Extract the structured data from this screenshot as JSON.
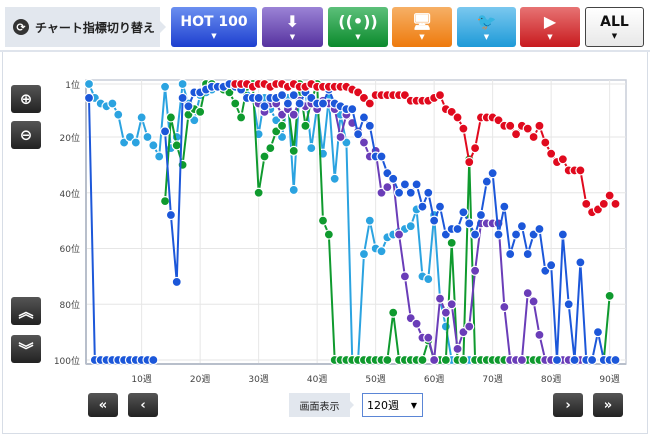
{
  "topbar": {
    "switch_label": "チャート指標切り替え",
    "buttons": [
      {
        "label": "HOT 100",
        "icon": "hot100",
        "color": "#2a52d8"
      },
      {
        "label": "",
        "icon": "download-sales-icon",
        "color": "#6a48b8"
      },
      {
        "label": "",
        "icon": "radio-antenna-icon",
        "color": "#12963a"
      },
      {
        "label": "",
        "icon": "pc-cd-icon",
        "color": "#f08a1c"
      },
      {
        "label": "",
        "icon": "twitter-bird-icon",
        "color": "#2ea6e2"
      },
      {
        "label": "",
        "icon": "youtube-play-icon",
        "color": "#d6252b"
      },
      {
        "label": "ALL",
        "icon": "all",
        "color": "#ffffff"
      }
    ]
  },
  "controls": {
    "display_label": "画面表示",
    "display_value": "120週"
  },
  "chart_data": {
    "type": "line",
    "xlabel": "",
    "ylabel": "",
    "x_tick_labels": [
      "10週",
      "20週",
      "30週",
      "40週",
      "50週",
      "60週",
      "70週",
      "80週",
      "90週"
    ],
    "y_tick_labels": [
      "1位",
      "20位",
      "40位",
      "60位",
      "80位",
      "100位"
    ],
    "xlim": [
      1,
      92
    ],
    "ylim": [
      100,
      1
    ],
    "y_reversed": true,
    "grid": true,
    "x": [
      1,
      2,
      3,
      4,
      5,
      6,
      7,
      8,
      9,
      10,
      11,
      12,
      13,
      14,
      15,
      16,
      17,
      18,
      19,
      20,
      21,
      22,
      23,
      24,
      25,
      26,
      27,
      28,
      29,
      30,
      31,
      32,
      33,
      34,
      35,
      36,
      37,
      38,
      39,
      40,
      41,
      42,
      43,
      44,
      45,
      46,
      47,
      48,
      49,
      50,
      51,
      52,
      53,
      54,
      55,
      56,
      57,
      58,
      59,
      60,
      61,
      62,
      63,
      64,
      65,
      66,
      67,
      68,
      69,
      70,
      71,
      72,
      73,
      74,
      75,
      76,
      77,
      78,
      79,
      80,
      81,
      82,
      83,
      84,
      85,
      86,
      87,
      88,
      89,
      90,
      91
    ],
    "series": [
      {
        "color": "#2ba3e0",
        "values": [
          1,
          6,
          8,
          9,
          8,
          12,
          22,
          20,
          22,
          13,
          20,
          23,
          27,
          2,
          24,
          20,
          1,
          8,
          14,
          5,
          4,
          3,
          2,
          2,
          2,
          2,
          3,
          5,
          6,
          19,
          6,
          10,
          14,
          20,
          6,
          39,
          2,
          3,
          24,
          9,
          26,
          6,
          35,
          12,
          22,
          100,
          100,
          62,
          50,
          60,
          61,
          56,
          55,
          54,
          53,
          52,
          46,
          70,
          71,
          48,
          78,
          88,
          100,
          100,
          100,
          100,
          100,
          100,
          100,
          100,
          100,
          100,
          100,
          100,
          100,
          100,
          100,
          100,
          100,
          100,
          null,
          null,
          null,
          null,
          null,
          null,
          null,
          null,
          null,
          null,
          null
        ]
      },
      {
        "color": "#0f9a2e",
        "values": [
          null,
          null,
          null,
          null,
          null,
          null,
          null,
          null,
          null,
          null,
          null,
          null,
          null,
          43,
          13,
          23,
          30,
          12,
          10,
          11,
          1,
          1,
          2,
          3,
          4,
          8,
          13,
          2,
          1,
          40,
          27,
          24,
          18,
          16,
          8,
          25,
          1,
          16,
          7,
          1,
          50,
          55,
          100,
          100,
          100,
          100,
          100,
          100,
          100,
          100,
          100,
          100,
          83,
          100,
          100,
          100,
          100,
          100,
          93,
          100,
          100,
          100,
          58,
          100,
          100,
          28,
          100,
          100,
          100,
          100,
          100,
          100,
          100,
          100,
          100,
          100,
          100,
          100,
          100,
          null,
          null,
          null,
          null,
          null,
          null,
          null,
          null,
          null,
          100,
          77,
          null
        ]
      },
      {
        "color": "#6a3db8",
        "values": [
          null,
          null,
          null,
          null,
          null,
          null,
          null,
          null,
          null,
          null,
          null,
          null,
          null,
          null,
          null,
          null,
          null,
          null,
          null,
          null,
          null,
          null,
          null,
          null,
          null,
          null,
          null,
          null,
          null,
          8,
          11,
          8,
          8,
          12,
          10,
          12,
          7,
          9,
          8,
          10,
          7,
          8,
          10,
          20,
          12,
          15,
          18,
          22,
          27,
          25,
          40,
          38,
          35,
          55,
          70,
          85,
          87,
          92,
          92,
          100,
          78,
          83,
          80,
          96,
          90,
          88,
          68,
          51,
          51,
          51,
          51,
          81,
          100,
          100,
          100,
          76,
          79,
          91,
          100,
          100,
          100,
          100,
          100,
          100,
          100,
          100,
          null,
          null,
          null,
          null,
          null
        ]
      },
      {
        "color": "#1c57d9",
        "values": [
          6,
          100,
          100,
          100,
          100,
          100,
          100,
          100,
          100,
          100,
          100,
          100,
          null,
          18,
          48,
          72,
          6,
          9,
          4,
          4,
          3,
          2,
          2,
          2,
          1,
          2,
          3,
          6,
          6,
          6,
          9,
          6,
          6,
          5,
          8,
          5,
          8,
          4,
          6,
          8,
          8,
          3,
          8,
          9,
          10,
          10,
          19,
          13,
          16,
          27,
          27,
          33,
          35,
          40,
          37,
          40,
          37,
          45,
          40,
          50,
          45,
          55,
          53,
          53,
          47,
          51,
          55,
          48,
          36,
          33,
          55,
          45,
          62,
          55,
          52,
          62,
          55,
          53,
          68,
          66,
          100,
          55,
          80,
          100,
          65,
          100,
          100,
          90,
          100,
          100,
          100
        ]
      },
      {
        "color": "#e00a1e",
        "values": [
          null,
          null,
          null,
          null,
          null,
          null,
          null,
          null,
          null,
          null,
          null,
          null,
          null,
          null,
          null,
          null,
          null,
          null,
          null,
          null,
          null,
          null,
          null,
          null,
          null,
          1,
          1,
          1,
          2,
          1,
          1,
          2,
          1,
          1,
          2,
          1,
          2,
          2,
          1,
          2,
          2,
          2,
          2,
          2,
          2,
          3,
          4,
          6,
          8,
          5,
          5,
          5,
          5,
          5,
          5,
          7,
          7,
          7,
          7,
          6,
          5,
          10,
          11,
          13,
          17,
          29,
          24,
          13,
          13,
          13,
          14,
          16,
          16,
          19,
          16,
          17,
          20,
          16,
          22,
          26,
          29,
          28,
          32,
          32,
          32,
          44,
          47,
          46,
          44,
          41,
          44
        ]
      }
    ]
  }
}
